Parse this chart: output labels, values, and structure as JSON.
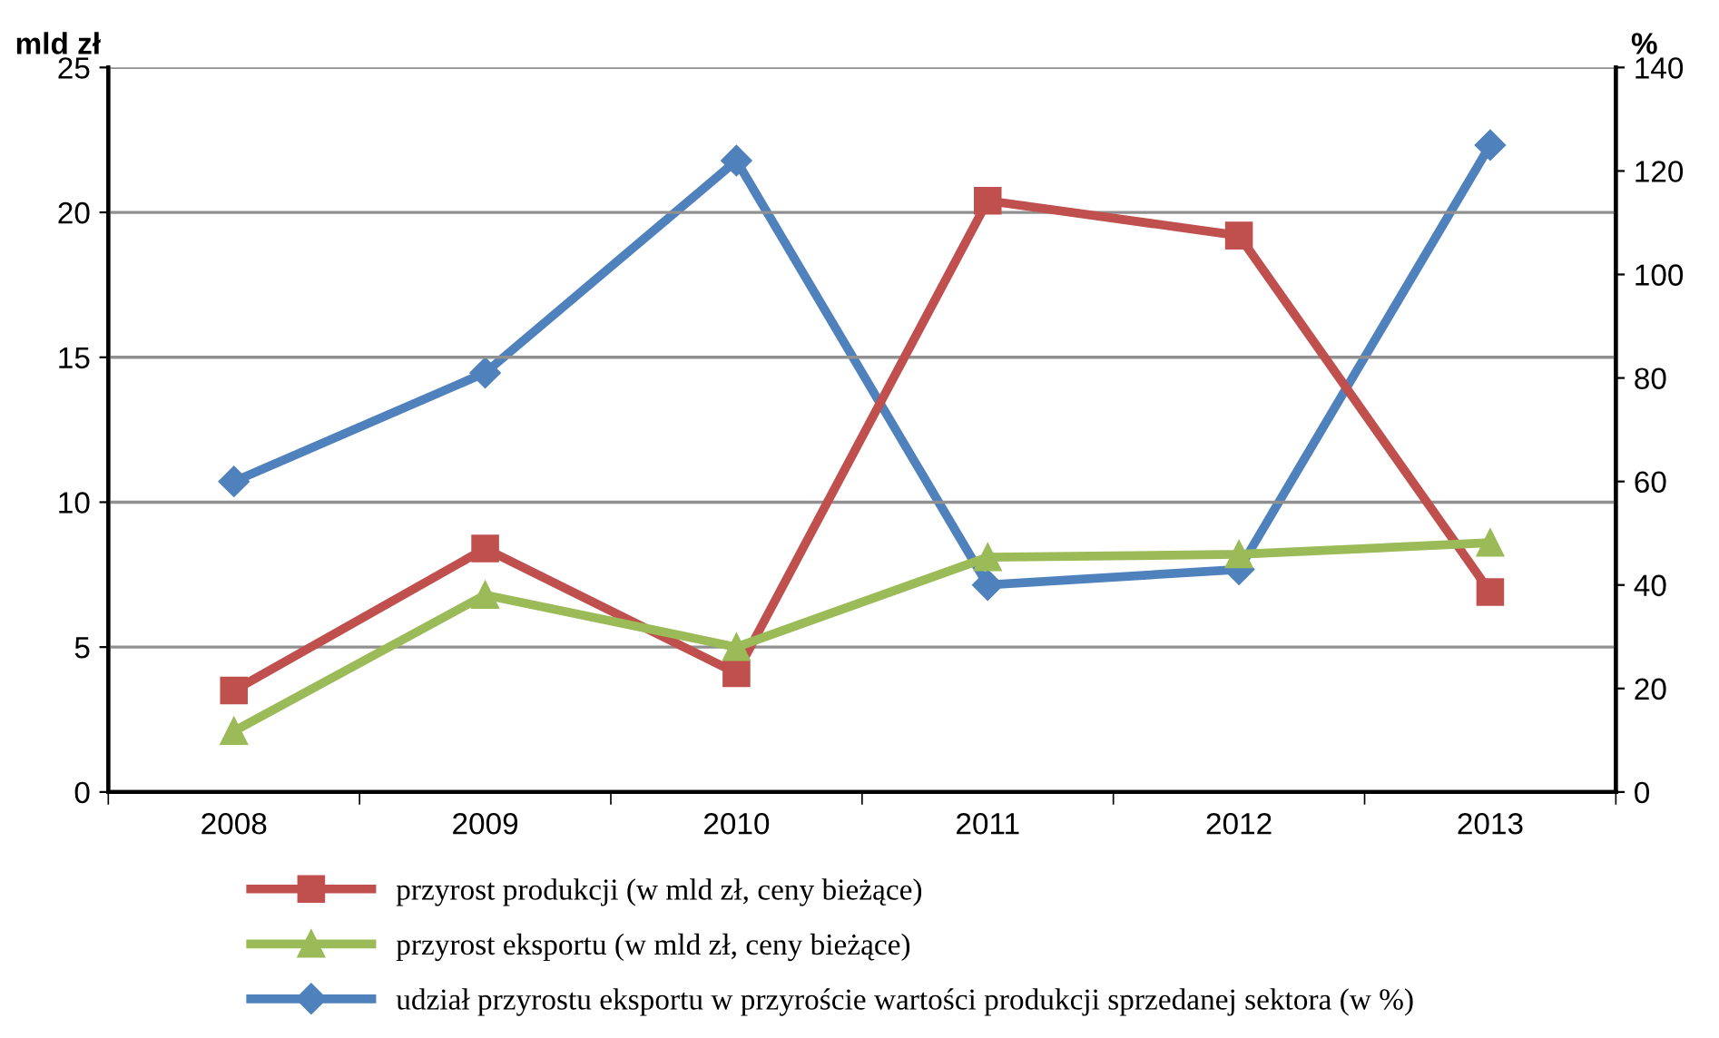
{
  "chart_data": {
    "type": "line",
    "ylabel": "mld zł",
    "y2label": "%",
    "categories": [
      "2008",
      "2009",
      "2010",
      "2011",
      "2012",
      "2013"
    ],
    "series": [
      {
        "name": "przyrost produkcji (w mld zł, ceny bieżące)",
        "color": "#c0504d",
        "marker": "square",
        "values": [
          3.5,
          8.4,
          4.1,
          20.4,
          19.2,
          6.9
        ]
      },
      {
        "name": "przyrost eksportu (w mld zł, ceny bieżące)",
        "color": "#9bbb59",
        "marker": "triangle",
        "values": [
          2.1,
          6.8,
          5.0,
          8.1,
          8.2,
          8.6
        ]
      },
      {
        "name": "udział przyrostu eksportu w przyroście wartości produkcji sprzedanej sektora (w %)",
        "color": "#4f81bd",
        "marker": "diamond",
        "axis": "y2",
        "values": [
          60,
          81,
          122,
          40,
          43,
          125
        ]
      }
    ],
    "ylim": [
      0,
      25
    ],
    "yticks": [
      0,
      5,
      10,
      15,
      20,
      25
    ],
    "y2lim": [
      0,
      140
    ],
    "y2ticks": [
      0,
      20,
      40,
      60,
      80,
      100,
      120,
      140
    ],
    "grid": "y",
    "legend": "bottom"
  }
}
